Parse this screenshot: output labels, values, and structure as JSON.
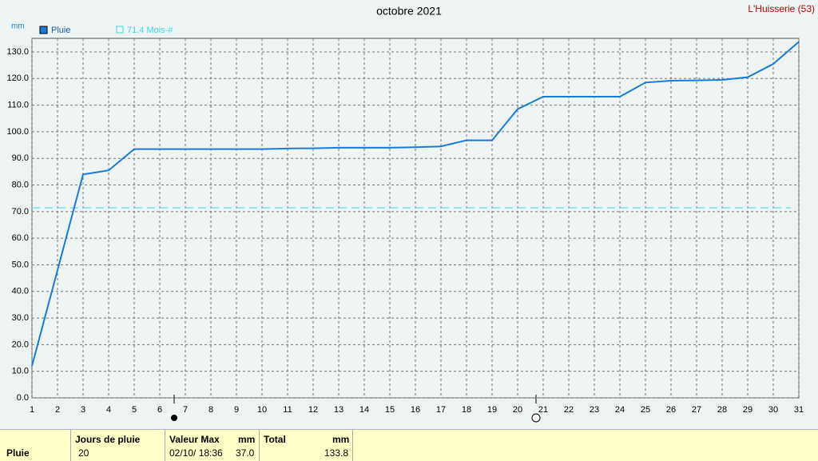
{
  "chart_data": {
    "type": "line",
    "title": "octobre 2021",
    "station": "L'Huisserie (53)",
    "y_unit": "mm",
    "x": [
      1,
      2,
      3,
      4,
      5,
      6,
      7,
      8,
      9,
      10,
      11,
      12,
      13,
      14,
      15,
      16,
      17,
      18,
      19,
      20,
      21,
      22,
      23,
      24,
      25,
      26,
      27,
      28,
      29,
      30,
      31
    ],
    "xlim": [
      1,
      31
    ],
    "xticks": [
      1,
      2,
      3,
      4,
      5,
      6,
      7,
      8,
      9,
      10,
      11,
      12,
      13,
      14,
      15,
      16,
      17,
      18,
      19,
      20,
      21,
      22,
      23,
      24,
      25,
      26,
      27,
      28,
      29,
      30,
      31
    ],
    "series": [
      {
        "name": "Pluie",
        "color": "#1a7ad8",
        "values": [
          12,
          48,
          84,
          85.5,
          93.5,
          93.5,
          93.5,
          93.5,
          93.5,
          93.5,
          93.7,
          93.8,
          94,
          94,
          94,
          94.2,
          94.5,
          96.8,
          96.8,
          108.5,
          113.2,
          113.2,
          113.2,
          113.2,
          118.5,
          119.2,
          119.3,
          119.5,
          120.5,
          125.5,
          133.8
        ]
      }
    ],
    "reference_line": {
      "value": 71.4,
      "label": "71.4 Mois-#",
      "color": "#40d8e0"
    },
    "ylim": [
      0,
      130
    ],
    "yticks": [
      {
        "value": 0,
        "label": "0.0"
      },
      {
        "value": 10,
        "label": "10.0"
      },
      {
        "value": 20,
        "label": "20.0"
      },
      {
        "value": 30,
        "label": "30.0"
      },
      {
        "value": 40,
        "label": "40.0"
      },
      {
        "value": 50,
        "label": "50.0"
      },
      {
        "value": 60,
        "label": "60.0"
      },
      {
        "value": 70,
        "label": "70.0"
      },
      {
        "value": 80,
        "label": "80.0"
      },
      {
        "value": 90,
        "label": "90.0"
      },
      {
        "value": 100,
        "label": "100.0"
      },
      {
        "value": 110,
        "label": "110.0"
      },
      {
        "value": 120,
        "label": "120.0"
      },
      {
        "value": 130,
        "label": "130.0"
      }
    ],
    "grid": true
  },
  "summary": {
    "row_label": "Pluie",
    "days_header": "Jours de pluie",
    "days": "20",
    "max_header": "Valeur Max",
    "max_unit": "mm",
    "max_date": "02/10/ 18:36",
    "max_value": "37.0",
    "total_header": "Total",
    "total_unit": "mm",
    "total_value": "133.8"
  }
}
